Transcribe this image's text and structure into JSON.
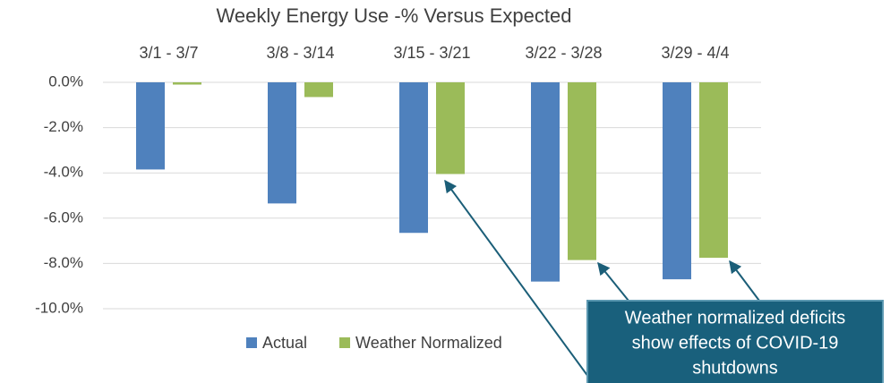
{
  "chart_data": {
    "type": "bar",
    "title": "Weekly Energy Use -% Versus Expected",
    "categories": [
      "3/1 - 3/7",
      "3/8 - 3/14",
      "3/15 - 3/21",
      "3/22 - 3/28",
      "3/29 - 4/4"
    ],
    "series": [
      {
        "name": "Actual",
        "color": "#4f81bd",
        "values": [
          -3.85,
          -5.35,
          -6.65,
          -8.8,
          -8.7
        ]
      },
      {
        "name": "Weather Normalized",
        "color": "#9bbb59",
        "values": [
          -0.1,
          -0.65,
          -4.05,
          -7.85,
          -7.75
        ]
      }
    ],
    "ylim": [
      -10,
      0
    ],
    "yticks": [
      {
        "value": 0,
        "label": "0.0%"
      },
      {
        "value": -2,
        "label": "-2.0%"
      },
      {
        "value": -4,
        "label": "-4.0%"
      },
      {
        "value": -6,
        "label": "-6.0%"
      },
      {
        "value": -8,
        "label": "-8.0%"
      },
      {
        "value": -10,
        "label": "-10.0%"
      }
    ],
    "grid": true,
    "legend": "bottom",
    "annotation": [
      "Weather normalized deficits",
      "show effects of COVID-19",
      "shutdowns"
    ]
  }
}
